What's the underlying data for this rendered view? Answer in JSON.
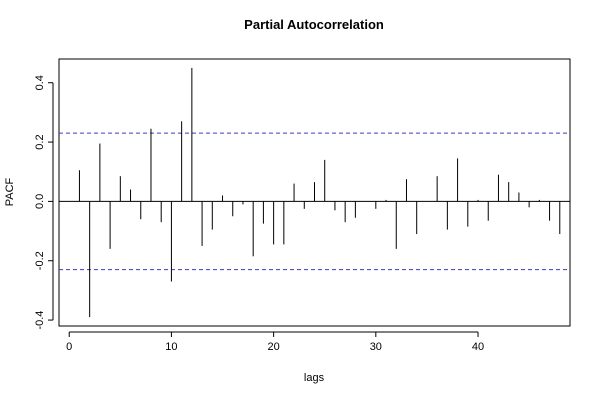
{
  "chart_data": {
    "type": "bar",
    "title": "Partial Autocorrelation",
    "xlabel": "lags",
    "ylabel": "PACF",
    "xlim": [
      -1,
      49
    ],
    "ylim": [
      -0.42,
      0.48
    ],
    "x_ticks": [
      0,
      10,
      20,
      30,
      40
    ],
    "y_ticks": [
      -0.4,
      -0.2,
      0.0,
      0.2,
      0.4
    ],
    "x_tick_labels": [
      "0",
      "10",
      "20",
      "30",
      "40"
    ],
    "y_tick_labels": [
      "-0.4",
      "-0.2",
      "0.0",
      "0.2",
      "0.4"
    ],
    "confidence_bounds": [
      0.23,
      -0.23
    ],
    "lags": [
      1,
      2,
      3,
      4,
      5,
      6,
      7,
      8,
      9,
      10,
      11,
      12,
      13,
      14,
      15,
      16,
      17,
      18,
      19,
      20,
      21,
      22,
      23,
      24,
      25,
      26,
      27,
      28,
      29,
      30,
      31,
      32,
      33,
      34,
      35,
      36,
      37,
      38,
      39,
      40,
      41,
      42,
      43,
      44,
      45,
      46,
      47,
      48
    ],
    "values": [
      0.105,
      -0.39,
      0.195,
      -0.16,
      0.085,
      0.04,
      -0.06,
      0.245,
      -0.07,
      -0.27,
      0.27,
      0.45,
      -0.15,
      -0.095,
      0.02,
      -0.05,
      -0.01,
      -0.185,
      -0.075,
      -0.145,
      -0.145,
      0.06,
      -0.025,
      0.065,
      0.14,
      -0.03,
      -0.07,
      -0.055,
      0.0,
      -0.025,
      0.005,
      -0.16,
      0.075,
      -0.11,
      0.0,
      0.085,
      -0.095,
      0.145,
      -0.085,
      0.005,
      -0.065,
      0.09,
      0.065,
      0.03,
      -0.02,
      0.005,
      -0.065,
      -0.11
    ],
    "colors": {
      "bars": "#000000",
      "bounds": "#3b3bc4",
      "zero_line": "#000000"
    },
    "grid": false
  }
}
